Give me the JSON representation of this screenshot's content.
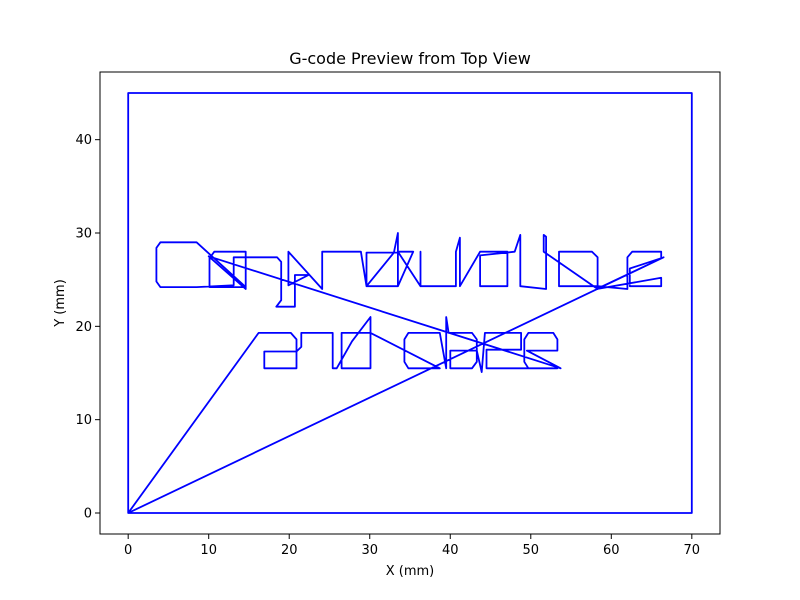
{
  "chart_data": {
    "type": "line",
    "title": "G-code Preview from Top View",
    "xlabel": "X (mm)",
    "ylabel": "Y (mm)",
    "xlim": [
      -3.5,
      73.5
    ],
    "ylim": [
      -2.25,
      47.25
    ],
    "xticks": [
      0,
      10,
      20,
      30,
      40,
      50,
      60,
      70
    ],
    "yticks": [
      0,
      10,
      20,
      30,
      40
    ],
    "grid": false,
    "line_color": "#0000ff",
    "series": [
      {
        "points": [
          [
            0,
            0
          ],
          [
            0,
            45
          ],
          [
            70,
            45
          ],
          [
            70,
            0
          ],
          [
            0,
            0
          ],
          [
            16.2,
            19.3
          ],
          [
            20.2,
            19.3
          ],
          [
            20.9,
            18.6
          ],
          [
            20.9,
            15.5
          ],
          [
            16.9,
            15.5
          ],
          [
            16.9,
            17.3
          ],
          [
            20.9,
            17.3
          ],
          [
            21.5,
            17.8
          ],
          [
            21.5,
            19.3
          ],
          [
            25.4,
            19.3
          ],
          [
            25.4,
            15.5
          ],
          [
            25.9,
            15.5
          ],
          [
            27.8,
            18.4
          ],
          [
            30.1,
            21.0
          ],
          [
            30.1,
            15.5
          ],
          [
            26.5,
            15.5
          ],
          [
            26.5,
            19.3
          ],
          [
            30.1,
            19.3
          ],
          [
            38.7,
            15.5
          ],
          [
            34.8,
            15.5
          ],
          [
            34.3,
            16.2
          ],
          [
            34.3,
            18.6
          ],
          [
            34.8,
            19.3
          ],
          [
            38.7,
            19.3
          ],
          [
            39.5,
            15.5
          ],
          [
            39.5,
            21.0
          ],
          [
            39.8,
            19.3
          ],
          [
            42.7,
            19.3
          ],
          [
            43.3,
            18.6
          ],
          [
            43.3,
            16.2
          ],
          [
            42.7,
            15.5
          ],
          [
            40.0,
            15.5
          ],
          [
            40.0,
            17.4
          ],
          [
            43.3,
            17.4
          ],
          [
            43.9,
            15.1
          ],
          [
            44.3,
            19.3
          ],
          [
            48.8,
            19.3
          ],
          [
            48.8,
            17.5
          ],
          [
            44.5,
            17.5
          ],
          [
            44.5,
            15.5
          ],
          [
            48.5,
            15.5
          ],
          [
            53.3,
            15.5
          ],
          [
            49.7,
            15.5
          ],
          [
            49.2,
            16.2
          ],
          [
            49.2,
            18.6
          ],
          [
            49.7,
            19.3
          ],
          [
            52.8,
            19.3
          ],
          [
            53.3,
            18.6
          ],
          [
            53.3,
            17.4
          ],
          [
            49.5,
            17.4
          ],
          [
            53.7,
            15.5
          ],
          [
            10.0,
            27.5
          ],
          [
            14.6,
            24.0
          ],
          [
            14.6,
            28.0
          ],
          [
            10.7,
            28.0
          ],
          [
            10.1,
            27.3
          ],
          [
            10.1,
            24.2
          ],
          [
            14.6,
            24.2
          ],
          [
            8.5,
            29.0
          ],
          [
            4.0,
            29.0
          ],
          [
            3.5,
            28.4
          ],
          [
            3.5,
            24.8
          ],
          [
            4.0,
            24.2
          ],
          [
            8.5,
            24.2
          ],
          [
            13.1,
            24.4
          ],
          [
            13.1,
            27.4
          ],
          [
            18.5,
            27.4
          ],
          [
            19.0,
            26.9
          ],
          [
            19.0,
            22.8
          ],
          [
            18.4,
            22.1
          ],
          [
            20.7,
            22.1
          ],
          [
            20.7,
            25.5
          ],
          [
            22.4,
            25.5
          ],
          [
            19.9,
            24.4
          ],
          [
            19.9,
            28.0
          ],
          [
            24.1,
            24.0
          ],
          [
            24.1,
            28.0
          ],
          [
            28.9,
            28.0
          ],
          [
            29.6,
            24.3
          ],
          [
            29.6,
            27.9
          ],
          [
            33.5,
            27.9
          ],
          [
            33.5,
            24.3
          ],
          [
            29.6,
            24.3
          ],
          [
            33.0,
            27.9
          ],
          [
            33.5,
            30.0
          ],
          [
            33.5,
            24.3
          ],
          [
            35.4,
            28.0
          ],
          [
            33.5,
            28.0
          ],
          [
            36.3,
            24.3
          ],
          [
            36.3,
            28.0
          ],
          [
            36.3,
            24.3
          ],
          [
            40.7,
            24.3
          ],
          [
            40.7,
            28.0
          ],
          [
            41.2,
            29.5
          ],
          [
            41.2,
            24.3
          ],
          [
            43.7,
            28.0
          ],
          [
            47.1,
            28.0
          ],
          [
            47.1,
            24.3
          ],
          [
            43.7,
            24.3
          ],
          [
            43.7,
            27.6
          ],
          [
            48.0,
            28.0
          ],
          [
            48.7,
            29.8
          ],
          [
            48.7,
            24.3
          ],
          [
            51.9,
            24.0
          ],
          [
            51.9,
            29.6
          ],
          [
            51.6,
            29.8
          ],
          [
            51.6,
            28.0
          ],
          [
            58.3,
            24.0
          ],
          [
            58.3,
            27.4
          ],
          [
            57.6,
            28.0
          ],
          [
            53.5,
            28.0
          ],
          [
            53.5,
            24.3
          ],
          [
            58.3,
            24.3
          ],
          [
            62.0,
            24.0
          ],
          [
            62.0,
            27.4
          ],
          [
            62.6,
            28.0
          ],
          [
            66.2,
            28.0
          ],
          [
            66.2,
            27.3
          ],
          [
            62.3,
            26.2
          ],
          [
            62.3,
            24.3
          ],
          [
            66.2,
            24.3
          ],
          [
            66.2,
            25.2
          ],
          [
            58.2,
            24.0
          ],
          [
            66.5,
            27.4
          ],
          [
            0,
            0
          ]
        ]
      }
    ]
  }
}
